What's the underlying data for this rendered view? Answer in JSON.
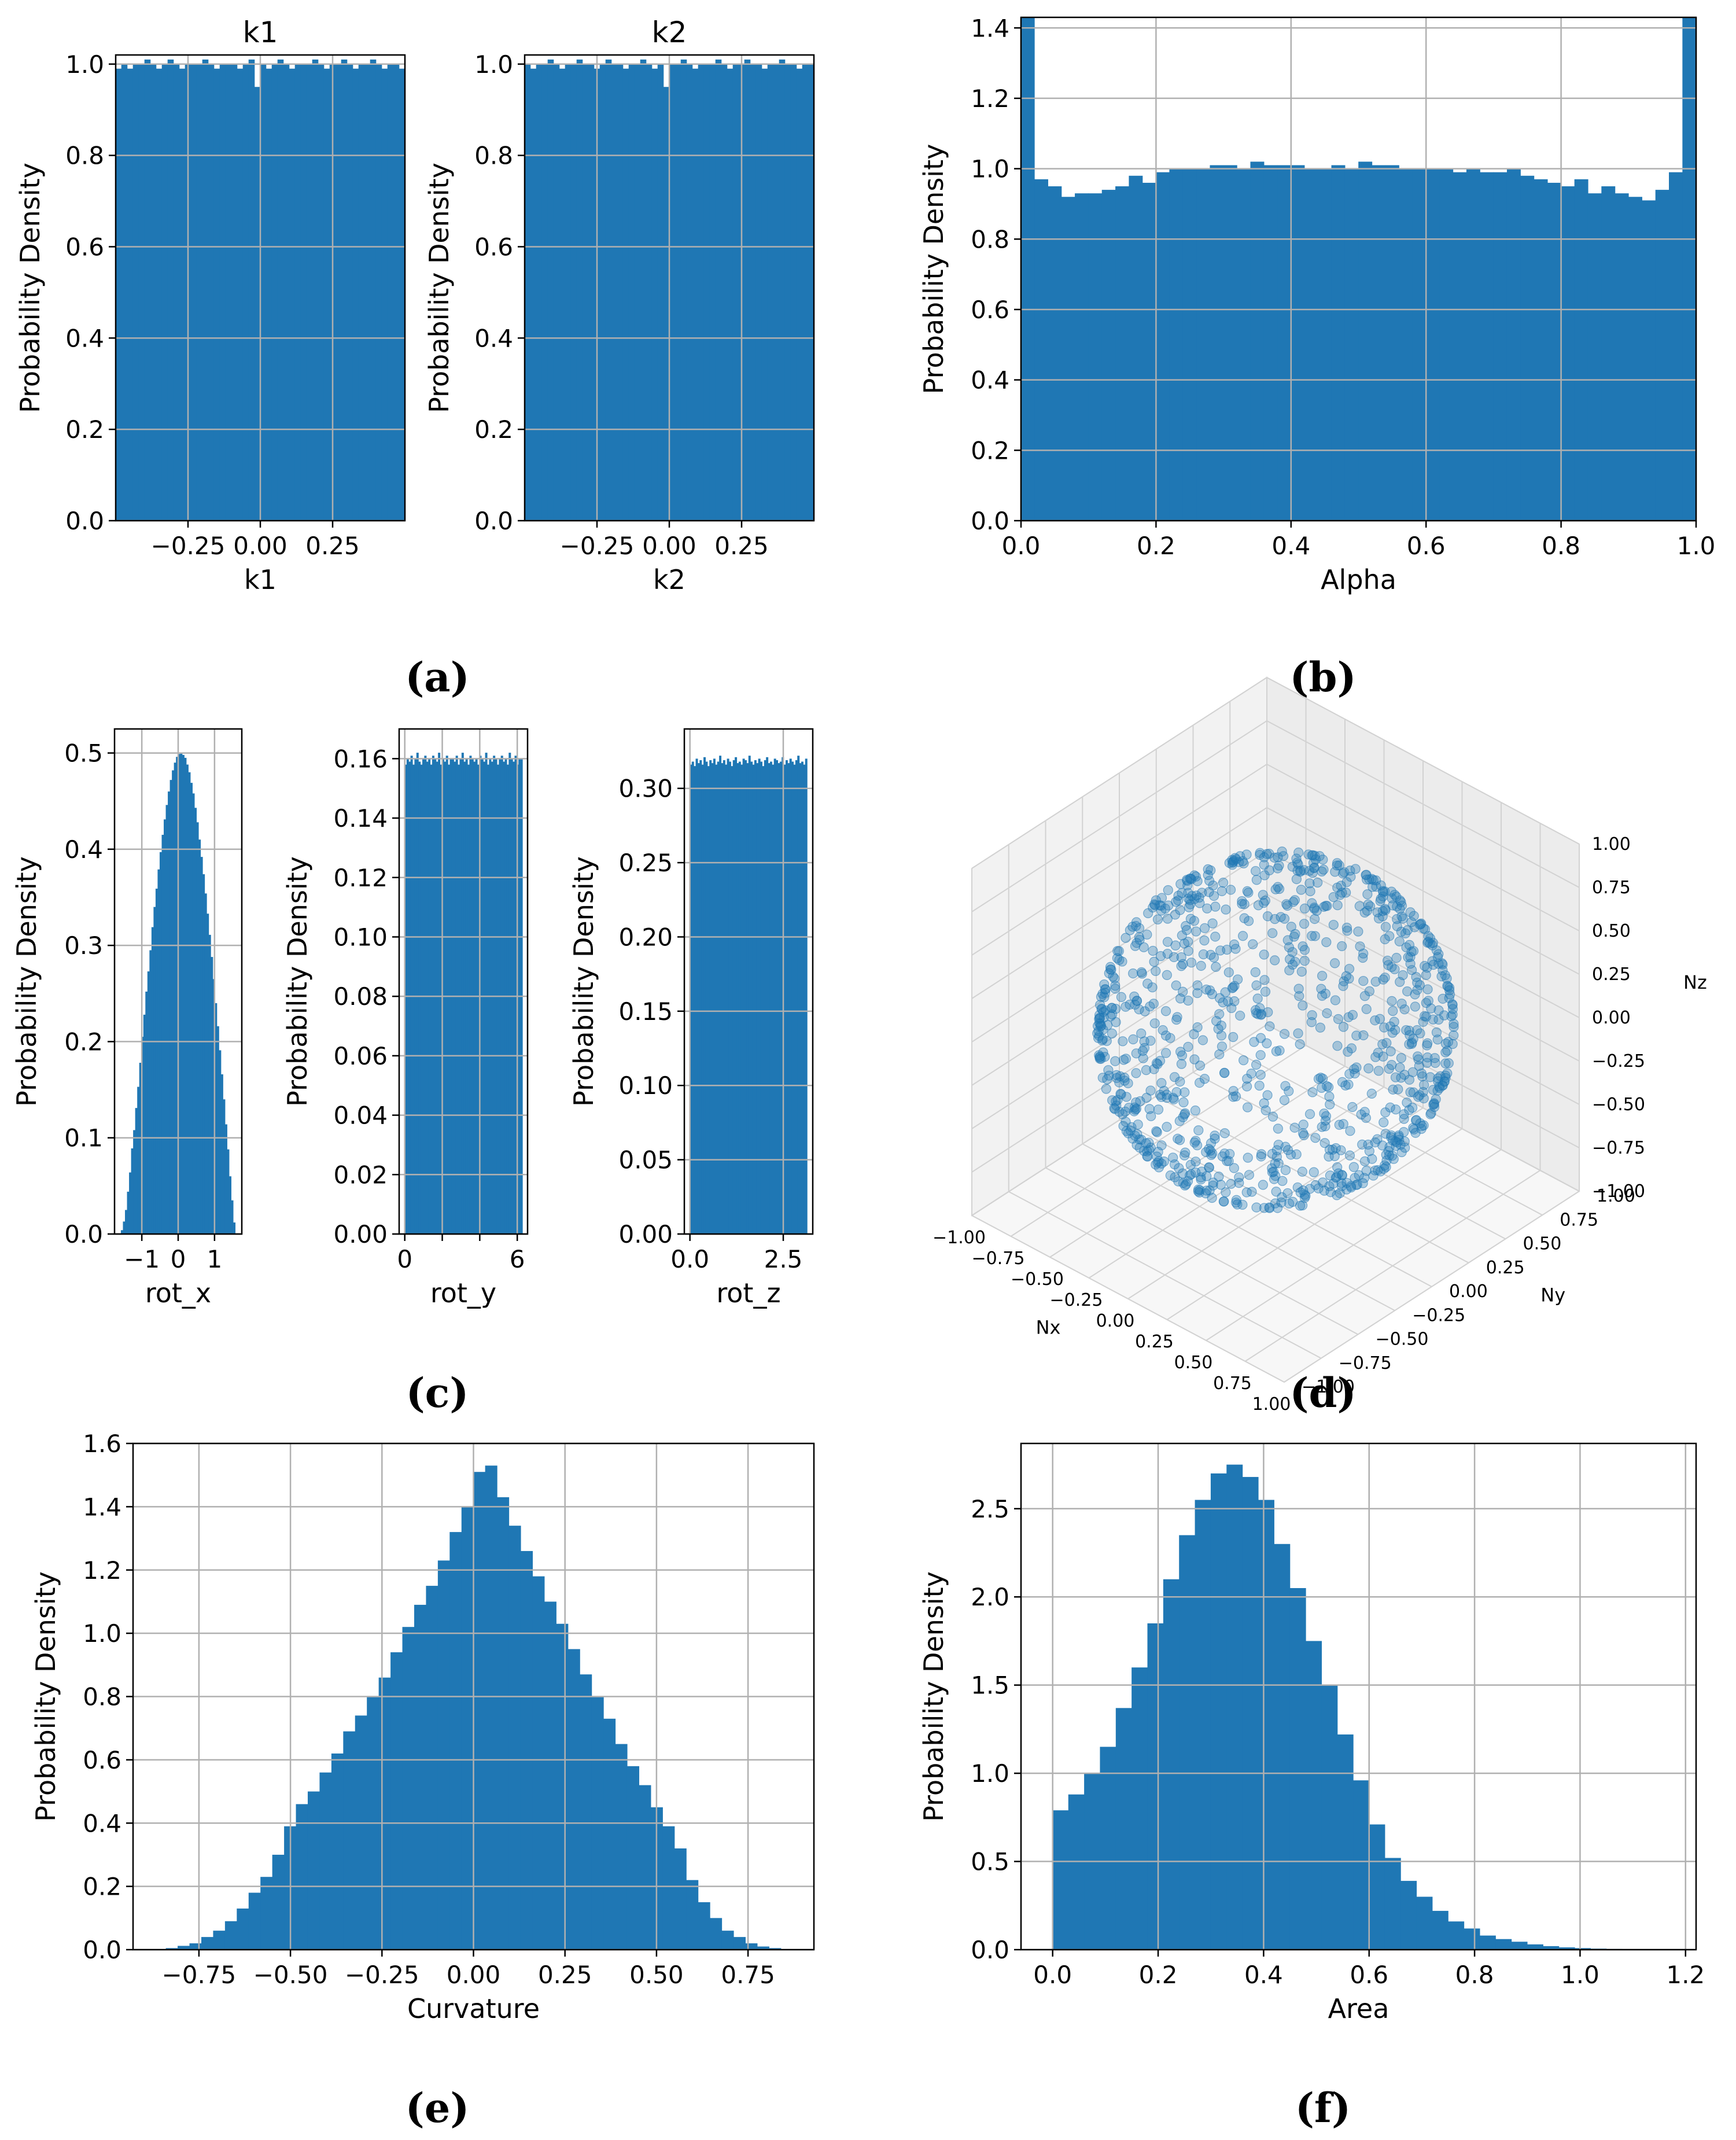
{
  "colors": {
    "bar": "#1f77b4",
    "grid": "#b0b0b0",
    "frame": "#000000",
    "pane": "#f2f2f2"
  },
  "captions": {
    "a": "(a)",
    "b": "(b)",
    "c": "(c)",
    "d": "(d)",
    "e": "(e)",
    "f": "(f)"
  },
  "chart_data": [
    {
      "id": "k1",
      "type": "bar",
      "title": "k1",
      "xlabel": "k1",
      "ylabel": "Probability Density",
      "xlim": [
        -0.5,
        0.5
      ],
      "ylim": [
        0,
        1.02
      ],
      "xticks": [
        -0.25,
        0.0,
        0.25
      ],
      "xtick_labels": [
        "−0.25",
        "0.00",
        "0.25"
      ],
      "yticks": [
        0,
        0.2,
        0.4,
        0.6,
        0.8,
        1.0
      ],
      "ytick_labels": [
        "0.0",
        "0.2",
        "0.4",
        "0.6",
        "0.8",
        "1.0"
      ],
      "bin_edges_range": [
        -0.5,
        0.5
      ],
      "values": [
        0.99,
        1.0,
        0.99,
        1.0,
        1.0,
        1.01,
        1.0,
        0.99,
        1.0,
        1.01,
        1.0,
        0.99,
        1.0,
        1.0,
        1.0,
        1.01,
        1.0,
        0.99,
        1.0,
        1.0,
        1.0,
        0.99,
        1.0,
        1.01,
        0.95,
        1.0,
        0.99,
        1.0,
        1.01,
        1.0,
        0.99,
        1.0,
        1.0,
        1.0,
        1.01,
        1.0,
        0.99,
        1.0,
        1.0,
        1.01,
        1.0,
        0.99,
        1.0,
        1.0,
        1.01,
        1.0,
        0.99,
        1.0,
        1.0,
        0.99
      ]
    },
    {
      "id": "k2",
      "type": "bar",
      "title": "k2",
      "xlabel": "k2",
      "ylabel": "Probability Density",
      "xlim": [
        -0.5,
        0.5
      ],
      "ylim": [
        0,
        1.02
      ],
      "xticks": [
        -0.25,
        0.0,
        0.25
      ],
      "xtick_labels": [
        "−0.25",
        "0.00",
        "0.25"
      ],
      "yticks": [
        0,
        0.2,
        0.4,
        0.6,
        0.8,
        1.0
      ],
      "ytick_labels": [
        "0.0",
        "0.2",
        "0.4",
        "0.6",
        "0.8",
        "1.0"
      ],
      "bin_edges_range": [
        -0.5,
        0.5
      ],
      "values": [
        1.0,
        0.99,
        1.0,
        1.0,
        1.01,
        1.0,
        0.99,
        1.0,
        1.0,
        1.01,
        1.0,
        1.0,
        0.99,
        1.0,
        1.01,
        1.0,
        1.0,
        0.99,
        1.0,
        1.0,
        1.01,
        1.0,
        0.99,
        1.0,
        0.95,
        1.0,
        1.0,
        1.01,
        1.0,
        0.99,
        1.0,
        1.0,
        1.0,
        1.01,
        1.0,
        0.99,
        1.0,
        1.0,
        1.01,
        1.0,
        1.0,
        0.99,
        1.0,
        1.0,
        1.01,
        1.0,
        1.0,
        0.99,
        1.0,
        1.0
      ]
    },
    {
      "id": "alpha",
      "type": "bar",
      "title": "",
      "xlabel": "Alpha",
      "ylabel": "Probability Density",
      "xlim": [
        0,
        1
      ],
      "ylim": [
        0,
        1.43
      ],
      "xticks": [
        0,
        0.2,
        0.4,
        0.6,
        0.8,
        1.0
      ],
      "xtick_labels": [
        "0.0",
        "0.2",
        "0.4",
        "0.6",
        "0.8",
        "1.0"
      ],
      "yticks": [
        0,
        0.2,
        0.4,
        0.6,
        0.8,
        1.0,
        1.2,
        1.4
      ],
      "ytick_labels": [
        "0.0",
        "0.2",
        "0.4",
        "0.6",
        "0.8",
        "1.0",
        "1.2",
        "1.4"
      ],
      "bin_edges_range": [
        0,
        1
      ],
      "values": [
        1.43,
        0.97,
        0.95,
        0.92,
        0.93,
        0.93,
        0.94,
        0.95,
        0.98,
        0.96,
        0.99,
        1.0,
        1.0,
        1.0,
        1.01,
        1.01,
        1.0,
        1.02,
        1.01,
        1.01,
        1.01,
        1.0,
        1.0,
        1.01,
        1.0,
        1.02,
        1.01,
        1.01,
        1.0,
        1.0,
        1.0,
        1.0,
        0.99,
        1.0,
        0.99,
        0.99,
        1.0,
        0.98,
        0.97,
        0.96,
        0.95,
        0.97,
        0.93,
        0.95,
        0.93,
        0.92,
        0.91,
        0.94,
        0.99,
        1.43
      ]
    },
    {
      "id": "rot_x",
      "type": "bar",
      "title": "",
      "xlabel": "rot_x",
      "ylabel": "Probability Density",
      "xlim": [
        -1.75,
        1.75
      ],
      "ylim": [
        0,
        0.525
      ],
      "xticks": [
        -1,
        0,
        1
      ],
      "xtick_labels": [
        "−1",
        "0",
        "1"
      ],
      "yticks": [
        0,
        0.1,
        0.2,
        0.3,
        0.4,
        0.5
      ],
      "ytick_labels": [
        "0.0",
        "0.1",
        "0.2",
        "0.3",
        "0.4",
        "0.5"
      ],
      "bin_edges_range": [
        -1.5708,
        1.5708
      ],
      "values": [
        0.004,
        0.013,
        0.025,
        0.044,
        0.064,
        0.089,
        0.108,
        0.131,
        0.153,
        0.178,
        0.205,
        0.228,
        0.252,
        0.273,
        0.295,
        0.319,
        0.34,
        0.359,
        0.379,
        0.397,
        0.415,
        0.431,
        0.446,
        0.46,
        0.472,
        0.482,
        0.49,
        0.496,
        0.499,
        0.5,
        0.498,
        0.495,
        0.488,
        0.48,
        0.469,
        0.458,
        0.443,
        0.428,
        0.41,
        0.392,
        0.374,
        0.354,
        0.333,
        0.311,
        0.288,
        0.265,
        0.24,
        0.216,
        0.191,
        0.166,
        0.14,
        0.114,
        0.088,
        0.06,
        0.035,
        0.012
      ]
    },
    {
      "id": "rot_y",
      "type": "bar",
      "title": "",
      "xlabel": "rot_y",
      "ylabel": "Probability Density",
      "xlim": [
        -0.3,
        6.55
      ],
      "ylim": [
        0,
        0.17
      ],
      "xticks": [
        0,
        2,
        4,
        6
      ],
      "xtick_labels": [
        "0",
        "",
        "",
        "6"
      ],
      "yticks": [
        0,
        0.02,
        0.04,
        0.06,
        0.08,
        0.1,
        0.12,
        0.14,
        0.16
      ],
      "ytick_labels": [
        "0.00",
        "0.02",
        "0.04",
        "0.06",
        "0.08",
        "0.10",
        "0.12",
        "0.14",
        "0.16"
      ],
      "bin_edges_range": [
        0,
        6.2832
      ],
      "values": [
        0.158,
        0.16,
        0.159,
        0.161,
        0.158,
        0.16,
        0.162,
        0.159,
        0.158,
        0.16,
        0.161,
        0.159,
        0.16,
        0.158,
        0.161,
        0.16,
        0.159,
        0.162,
        0.158,
        0.16,
        0.159,
        0.161,
        0.158,
        0.16,
        0.16,
        0.159,
        0.161,
        0.158,
        0.16,
        0.162,
        0.159,
        0.16,
        0.158,
        0.161,
        0.16,
        0.159,
        0.16,
        0.158,
        0.161,
        0.16,
        0.159,
        0.162,
        0.158,
        0.16,
        0.159,
        0.161,
        0.16,
        0.158,
        0.16,
        0.161,
        0.159,
        0.16,
        0.158,
        0.162,
        0.16,
        0.159,
        0.161,
        0.158,
        0.16,
        0.16
      ]
    },
    {
      "id": "rot_z",
      "type": "bar",
      "title": "",
      "xlabel": "rot_z",
      "ylabel": "Probability Density",
      "xlim": [
        -0.15,
        3.29
      ],
      "ylim": [
        0,
        0.34
      ],
      "xticks": [
        0,
        2.5
      ],
      "xtick_labels": [
        "0.0",
        "2.5"
      ],
      "yticks": [
        0,
        0.05,
        0.1,
        0.15,
        0.2,
        0.25,
        0.3
      ],
      "ytick_labels": [
        "0.00",
        "0.05",
        "0.10",
        "0.15",
        "0.20",
        "0.25",
        "0.30"
      ],
      "bin_edges_range": [
        0,
        3.1416
      ],
      "values": [
        0.316,
        0.318,
        0.315,
        0.32,
        0.317,
        0.319,
        0.316,
        0.321,
        0.318,
        0.315,
        0.319,
        0.317,
        0.32,
        0.316,
        0.318,
        0.322,
        0.317,
        0.319,
        0.316,
        0.32,
        0.318,
        0.315,
        0.319,
        0.321,
        0.317,
        0.318,
        0.316,
        0.32,
        0.319,
        0.317,
        0.322,
        0.318,
        0.316,
        0.319,
        0.317,
        0.32,
        0.318,
        0.315,
        0.319,
        0.321,
        0.317,
        0.318,
        0.316,
        0.32,
        0.319,
        0.317,
        0.318,
        0.321,
        0.316,
        0.319,
        0.317,
        0.32,
        0.318,
        0.316,
        0.319,
        0.322,
        0.317,
        0.318,
        0.316,
        0.32
      ]
    },
    {
      "id": "normals",
      "type": "scatter",
      "title": "",
      "xlabel": "Nx",
      "ylabel": "Ny",
      "zlabel": "Nz",
      "xlim": [
        -1,
        1
      ],
      "ylim": [
        -1,
        1
      ],
      "zlim": [
        -1,
        1
      ],
      "xtick_labels": [
        "−1.00",
        "−0.75",
        "−0.50",
        "−0.25",
        "0.00",
        "0.25",
        "0.50",
        "0.75",
        "1.00"
      ],
      "ytick_labels": [
        "−1.00",
        "−0.75",
        "−0.50",
        "−0.25",
        "0.00",
        "0.25",
        "0.50",
        "0.75",
        "1.00"
      ],
      "ztick_labels": [
        "−1.00",
        "−0.75",
        "−0.50",
        "−0.25",
        "0.00",
        "0.25",
        "0.50",
        "0.75",
        "1.00"
      ],
      "points": "unit vectors uniformly distributed on the unit sphere",
      "n_points": 1000
    },
    {
      "id": "curvature",
      "type": "bar",
      "title": "",
      "xlabel": "Curvature",
      "ylabel": "Probability Density",
      "xlim": [
        -0.93,
        0.93
      ],
      "ylim": [
        0,
        1.6
      ],
      "xticks": [
        -0.75,
        -0.5,
        -0.25,
        0,
        0.25,
        0.5,
        0.75
      ],
      "xtick_labels": [
        "−0.75",
        "−0.50",
        "−0.25",
        "0.00",
        "0.25",
        "0.50",
        "0.75"
      ],
      "yticks": [
        0,
        0.2,
        0.4,
        0.6,
        0.8,
        1.0,
        1.2,
        1.4,
        1.6
      ],
      "ytick_labels": [
        "0.0",
        "0.2",
        "0.4",
        "0.6",
        "0.8",
        "1.0",
        "1.2",
        "1.4",
        "1.6"
      ],
      "bin_edges_range": [
        -0.84,
        0.84
      ],
      "values": [
        0.005,
        0.012,
        0.02,
        0.04,
        0.06,
        0.09,
        0.13,
        0.18,
        0.23,
        0.3,
        0.39,
        0.46,
        0.5,
        0.56,
        0.62,
        0.69,
        0.74,
        0.8,
        0.86,
        0.94,
        1.02,
        1.09,
        1.15,
        1.23,
        1.32,
        1.4,
        1.51,
        1.53,
        1.43,
        1.34,
        1.26,
        1.18,
        1.1,
        1.03,
        0.95,
        0.87,
        0.8,
        0.73,
        0.65,
        0.58,
        0.52,
        0.45,
        0.39,
        0.32,
        0.22,
        0.15,
        0.1,
        0.06,
        0.04,
        0.02,
        0.01,
        0.005
      ]
    },
    {
      "id": "area",
      "type": "bar",
      "title": "",
      "xlabel": "Area",
      "ylabel": "Probability Density",
      "xlim": [
        -0.06,
        1.22
      ],
      "ylim": [
        0,
        2.87
      ],
      "xticks": [
        0,
        0.2,
        0.4,
        0.6,
        0.8,
        1.0,
        1.2
      ],
      "xtick_labels": [
        "0.0",
        "0.2",
        "0.4",
        "0.6",
        "0.8",
        "1.0",
        "1.2"
      ],
      "yticks": [
        0,
        0.5,
        1.0,
        1.5,
        2.0,
        2.5
      ],
      "ytick_labels": [
        "0.0",
        "0.5",
        "1.0",
        "1.5",
        "2.0",
        "2.5"
      ],
      "bin_edges_range": [
        0,
        1.2
      ],
      "values": [
        0.79,
        0.88,
        1.0,
        1.15,
        1.37,
        1.6,
        1.85,
        2.1,
        2.35,
        2.55,
        2.7,
        2.75,
        2.68,
        2.55,
        2.3,
        2.05,
        1.75,
        1.5,
        1.22,
        0.96,
        0.71,
        0.52,
        0.39,
        0.3,
        0.22,
        0.16,
        0.12,
        0.08,
        0.06,
        0.045,
        0.03,
        0.02,
        0.013,
        0.009,
        0.006,
        0.004,
        0.003,
        0.002,
        0.001,
        0.001
      ]
    }
  ]
}
